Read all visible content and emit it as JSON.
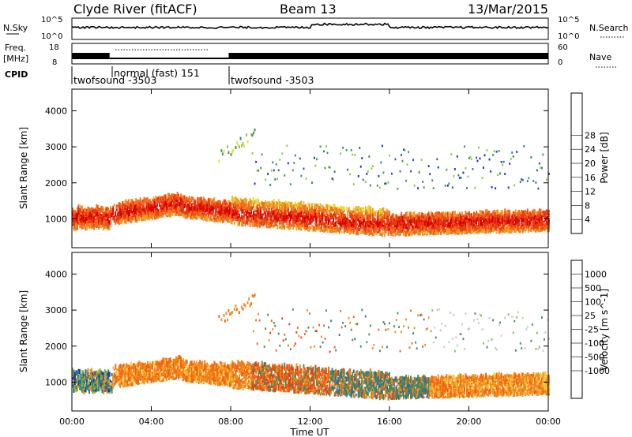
{
  "header": {
    "station": "Clyde River (fitACF)",
    "beam": "Beam 13",
    "date": "13/Mar/2015"
  },
  "strips": {
    "nsky": {
      "label": "N.Sky",
      "ticks_left": [
        "10^5",
        "10^0"
      ]
    },
    "nsearch": {
      "label": "N.Search",
      "ticks_right": [
        "10^5",
        "10^0"
      ]
    },
    "freq": {
      "label": "Freq.",
      "unit": "[MHz]",
      "ticks_left": [
        "18",
        "8"
      ]
    },
    "nave": {
      "label": "Nave",
      "ticks_right": [
        "60",
        "0"
      ]
    },
    "cpid": {
      "label": "CPID",
      "segments": [
        {
          "name": "twofsound -3503",
          "start": 0.0,
          "end": 1.9
        },
        {
          "name": "normal (fast) 151",
          "start": 1.9,
          "end": 7.9
        },
        {
          "name": "twofsound -3503",
          "start": 7.9,
          "end": 24.0
        }
      ]
    }
  },
  "chart_data": [
    {
      "type": "heatmap",
      "name": "power",
      "x_range": [
        0,
        24
      ],
      "ylim": [
        200,
        4600
      ],
      "ylabel": "Slant Range [km]",
      "yticks": [
        "1000",
        "2000",
        "3000",
        "4000"
      ],
      "colorbar": {
        "label": "Power [dB]",
        "ticks": [
          "4",
          "8",
          "12",
          "16",
          "20",
          "24",
          "28"
        ],
        "colors": [
          "#1428c8",
          "#1e50b4",
          "#2e7d64",
          "#3c9650",
          "#8cc83c",
          "#e6dc32",
          "#f0a028",
          "#f06e1e",
          "#e63c14",
          "#dc0000"
        ]
      }
    },
    {
      "type": "heatmap",
      "name": "velocity",
      "x_range": [
        0,
        24
      ],
      "ylim": [
        200,
        4600
      ],
      "ylabel": "Slant Range [km]",
      "yticks": [
        "1000",
        "2000",
        "3000",
        "4000"
      ],
      "colorbar": {
        "label": "Velocity [m s^-1]",
        "ticks": [
          "1000",
          "500",
          "100",
          "25",
          "-25",
          "-100",
          "-500",
          "-1000"
        ],
        "colors": [
          "#1e3ca0",
          "#2e6e96",
          "#3c8c64",
          "#78c84a",
          "#c8c8c8",
          "#f0c83c",
          "#f08c1e",
          "#f06414",
          "#e63c14",
          "#dc0a0a"
        ]
      }
    }
  ],
  "xaxis": {
    "label": "Time UT",
    "ticks": [
      "00:00",
      "04:00",
      "08:00",
      "12:00",
      "16:00",
      "20:00",
      "00:00"
    ]
  }
}
